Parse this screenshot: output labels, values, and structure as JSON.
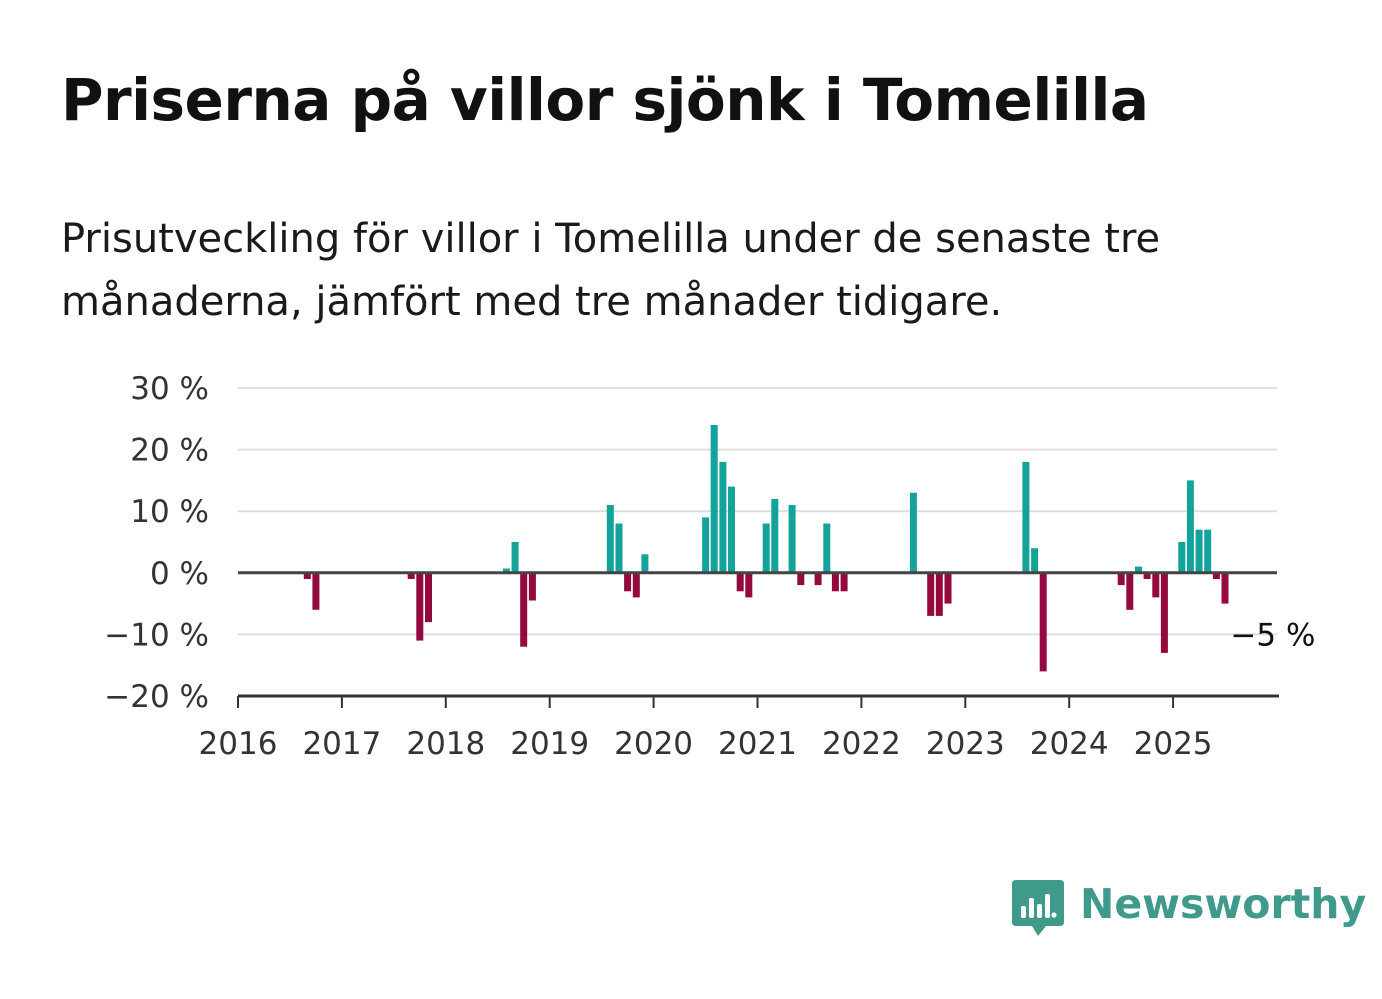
{
  "title": "Priserna på villor sjönk i Tomelilla",
  "subtitle": "Prisutveckling för villor i Tomelilla under de senaste tre månaderna, jämfört med tre månader tidigare.",
  "brand": {
    "name": "Newsworthy",
    "icon": "newsworthy-bar-chart-icon",
    "color": "#3f9a8c"
  },
  "chart_data": {
    "type": "bar",
    "ylim": [
      -20,
      30
    ],
    "xlim": [
      2016,
      2026
    ],
    "grid": true,
    "y_ticks": [
      {
        "value": 30,
        "label": "30 %"
      },
      {
        "value": 20,
        "label": "20 %"
      },
      {
        "value": 10,
        "label": "10 %"
      },
      {
        "value": 0,
        "label": "0 %"
      },
      {
        "value": -10,
        "label": "−10 %"
      },
      {
        "value": -20,
        "label": "−20 %"
      }
    ],
    "x_ticks": [
      "2016",
      "2017",
      "2018",
      "2019",
      "2020",
      "2021",
      "2022",
      "2023",
      "2024",
      "2025"
    ],
    "colors": {
      "positive": "#14a39a",
      "negative": "#950a3e"
    },
    "annotation": {
      "label": "−5 %",
      "x": "2025-06",
      "y": -5
    },
    "x": [
      "2016-09",
      "2016-10",
      "2017-09",
      "2017-10",
      "2017-11",
      "2018-08",
      "2018-09",
      "2018-10",
      "2018-11",
      "2019-08",
      "2019-09",
      "2019-10",
      "2019-11",
      "2019-12",
      "2020-07",
      "2020-08",
      "2020-09",
      "2020-10",
      "2020-11",
      "2020-12",
      "2021-02",
      "2021-03",
      "2021-05",
      "2021-06",
      "2021-08",
      "2021-09",
      "2021-10",
      "2021-11",
      "2022-07",
      "2022-09",
      "2022-10",
      "2022-11",
      "2023-08",
      "2023-09",
      "2023-10",
      "2024-07",
      "2024-08",
      "2024-09",
      "2024-10",
      "2024-11",
      "2024-12",
      "2025-02",
      "2025-03",
      "2025-04",
      "2025-05",
      "2025-06",
      "2025-07"
    ],
    "values": [
      -1,
      -6,
      -1,
      -11,
      -8,
      0.7,
      5,
      -12,
      -4.5,
      11,
      8,
      -3,
      -4,
      3,
      9,
      24,
      18,
      14,
      -3,
      -4,
      8,
      12,
      11,
      -2,
      -2,
      8,
      -3,
      -3,
      13,
      -7,
      -7,
      -5,
      18,
      4,
      -16,
      -2,
      -6,
      1,
      -1,
      -4,
      -13,
      5,
      15,
      7,
      7,
      -1,
      -5
    ]
  }
}
